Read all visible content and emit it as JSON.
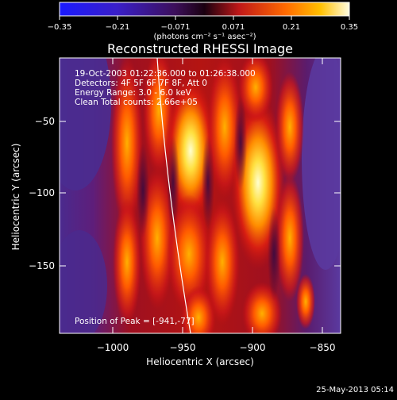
{
  "colorbar": {
    "ticks": [
      "−0.35",
      "−0.21",
      "−0.071",
      "0.071",
      "0.21",
      "0.35"
    ],
    "units": "(photons cm⁻² s⁻¹ asec⁻²)"
  },
  "title": "Reconstructed RHESSI Image",
  "info": {
    "time_range": "19-Oct-2003 01:22:36.000 to 01:26:38.000",
    "detectors": "Detectors: 4F 5F 6F 7F 8F, Att 0",
    "energy": "Energy Range: 3.0 - 6.0 keV",
    "clean": "Clean     Total counts: 2.66e+05",
    "peak": "Position of Peak = [-941,-77]"
  },
  "axes": {
    "xlabel": "Heliocentric X (arcsec)",
    "ylabel": "Heliocentric Y (arcsec)",
    "xticks": [
      "−1000",
      "−950",
      "−900",
      "−850"
    ],
    "yticks": [
      "−50",
      "−100",
      "−150"
    ]
  },
  "timestamp": "25-May-2013 05:14",
  "colors": {
    "background": "#000000",
    "text": "#ffffff"
  }
}
